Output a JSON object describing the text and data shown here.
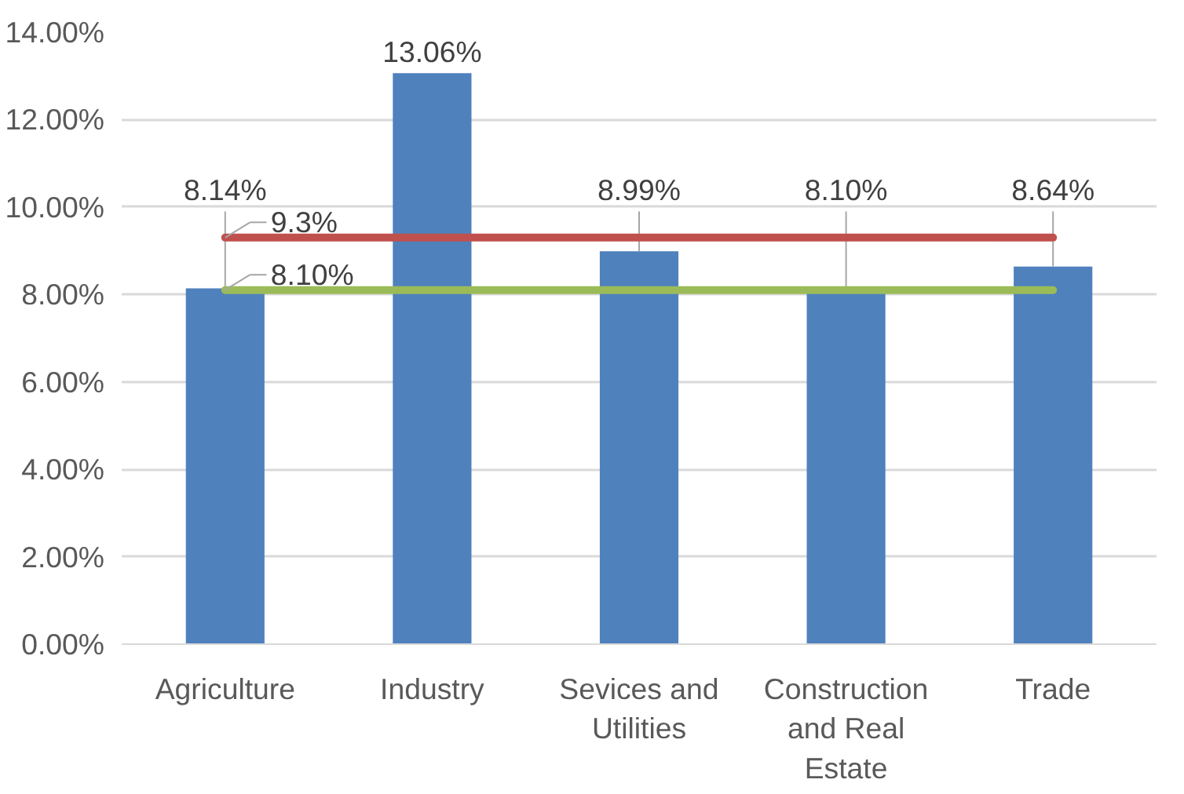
{
  "chart_data": {
    "type": "bar",
    "categories": [
      "Agriculture",
      "Industry",
      "Sevices and Utilities",
      "Construction and Real Estate",
      "Trade"
    ],
    "series": [
      {
        "color": "#4f81bd",
        "values": [
          8.14,
          13.06,
          8.99,
          8.1,
          8.64
        ],
        "value_labels": [
          "8.14%",
          "13.06%",
          "8.99%",
          "8.10%",
          "8.64%"
        ]
      },
      {
        "type": "line",
        "color": "#c0504d",
        "values": [
          9.3,
          9.3,
          9.3,
          9.3,
          9.3
        ],
        "value_labels": [
          "9.3%",
          null,
          null,
          null,
          null
        ]
      },
      {
        "type": "line",
        "color": "#9bbb59",
        "values": [
          8.1,
          8.1,
          8.1,
          8.1,
          8.1
        ],
        "value_labels": [
          "8.10%",
          null,
          null,
          null,
          null
        ]
      }
    ],
    "ylim": [
      0,
      14
    ],
    "yticks": [
      {
        "value": 0,
        "label": "0.00%"
      },
      {
        "value": 2,
        "label": "2.00%"
      },
      {
        "value": 4,
        "label": "4.00%"
      },
      {
        "value": 6,
        "label": "6.00%"
      },
      {
        "value": 8,
        "label": "8.00%"
      },
      {
        "value": 10,
        "label": "10.00%"
      },
      {
        "value": 12,
        "label": "12.00%"
      },
      {
        "value": 14,
        "label": "14.00%"
      }
    ],
    "grid": "y"
  }
}
